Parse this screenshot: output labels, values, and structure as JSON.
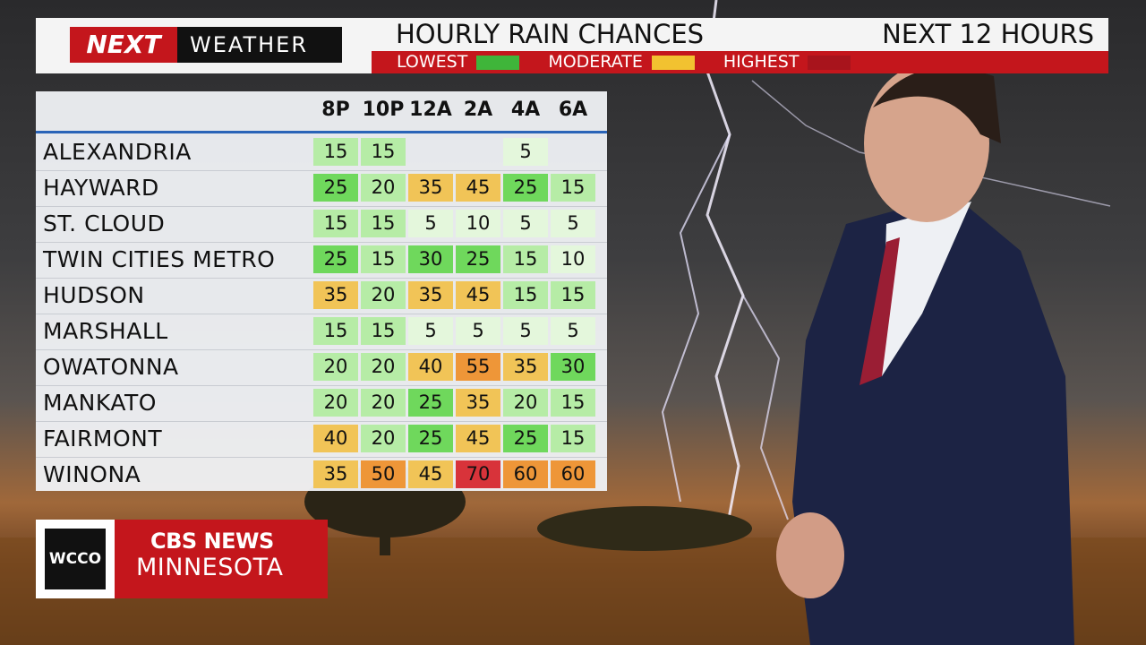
{
  "header": {
    "logo": {
      "brand": "NEXT",
      "product": "WEATHER"
    },
    "title": "HOURLY RAIN CHANCES",
    "period": "NEXT 12 HOURS",
    "legend": [
      {
        "label": "LOWEST",
        "color": "#3fb53a"
      },
      {
        "label": "MODERATE",
        "color": "#f2c230"
      },
      {
        "label": "HIGHEST",
        "color": "#a8141c"
      }
    ]
  },
  "table": {
    "columns": [
      "8P",
      "10P",
      "12A",
      "2A",
      "4A",
      "6A"
    ],
    "color_scale": [
      {
        "max": 10,
        "color": "#e4f7dc"
      },
      {
        "max": 20,
        "color": "#b6eca6"
      },
      {
        "max": 30,
        "color": "#6fd85c"
      },
      {
        "max": 45,
        "color": "#f1c457"
      },
      {
        "max": 60,
        "color": "#ee9638"
      },
      {
        "max": 100,
        "color": "#d8333a"
      }
    ],
    "rows": [
      {
        "name": "ALEXANDRIA",
        "values": [
          15,
          15,
          null,
          null,
          5,
          null
        ]
      },
      {
        "name": "HAYWARD",
        "values": [
          25,
          20,
          35,
          45,
          25,
          15
        ]
      },
      {
        "name": "ST. CLOUD",
        "values": [
          15,
          15,
          5,
          10,
          5,
          5
        ]
      },
      {
        "name": "TWIN CITIES METRO",
        "values": [
          25,
          15,
          30,
          25,
          15,
          10
        ]
      },
      {
        "name": "HUDSON",
        "values": [
          35,
          20,
          35,
          45,
          15,
          15
        ]
      },
      {
        "name": "MARSHALL",
        "values": [
          15,
          15,
          5,
          5,
          5,
          5
        ]
      },
      {
        "name": "OWATONNA",
        "values": [
          20,
          20,
          40,
          55,
          35,
          30
        ]
      },
      {
        "name": "MANKATO",
        "values": [
          20,
          20,
          25,
          35,
          20,
          15
        ]
      },
      {
        "name": "FAIRMONT",
        "values": [
          40,
          20,
          25,
          45,
          25,
          15
        ]
      },
      {
        "name": "WINONA",
        "values": [
          35,
          50,
          45,
          70,
          60,
          60
        ]
      }
    ]
  },
  "station": {
    "call_sign": "WCCO",
    "network": "CBS NEWS",
    "region": "MINNESOTA"
  }
}
